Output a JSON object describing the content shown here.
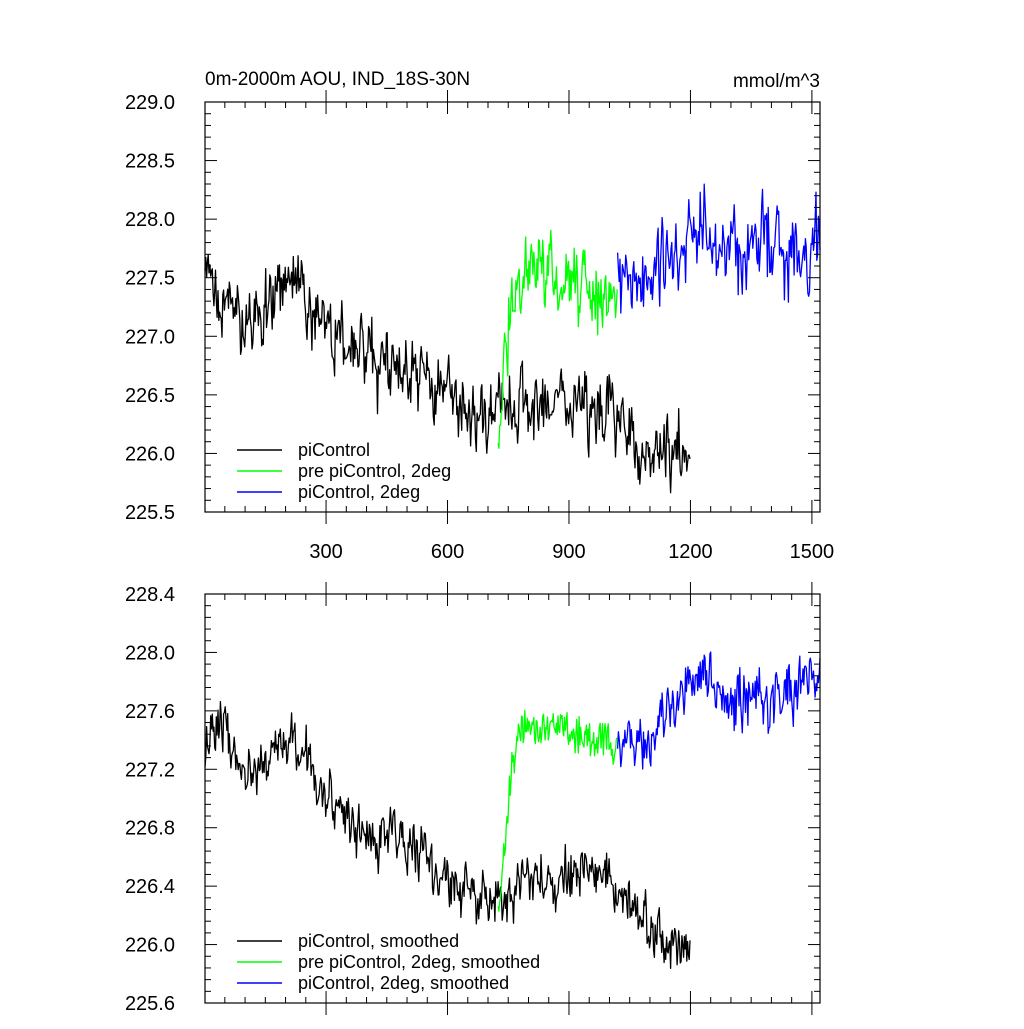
{
  "colors": {
    "piControl": "#000000",
    "pre_piControl_2deg": "#00ff00",
    "piControl_2deg": "#0000ff"
  },
  "chart_data": [
    {
      "type": "line",
      "title": "0m-2000m AOU, IND_18S-30N",
      "unit_label": "mmol/m^3",
      "xlabel": "",
      "ylabel": "",
      "xlim": [
        1,
        1520
      ],
      "ylim": [
        225.5,
        229.0
      ],
      "x_ticks": [
        300,
        600,
        900,
        1200,
        1500
      ],
      "y_ticks": [
        225.5,
        226.0,
        226.5,
        227.0,
        227.5,
        228.0,
        228.5,
        229.0
      ],
      "y_tick_labels": [
        "225.5",
        "226.0",
        "226.5",
        "227.0",
        "227.5",
        "228.0",
        "228.5",
        "229.0"
      ],
      "x_tick_labels": [
        "300",
        "600",
        "900",
        "1200",
        "1500"
      ],
      "grid": false,
      "legend_position": "bottom-left",
      "series": [
        {
          "name": "piControl",
          "color": "#000000",
          "x_start": 1,
          "x_end": 1200,
          "noise": 0.22,
          "anchors": [
            [
              1,
              227.45
            ],
            [
              100,
              227.1
            ],
            [
              200,
              227.5
            ],
            [
              300,
              227.1
            ],
            [
              400,
              226.8
            ],
            [
              500,
              226.7
            ],
            [
              600,
              226.5
            ],
            [
              700,
              226.25
            ],
            [
              730,
              226.3
            ],
            [
              800,
              226.45
            ],
            [
              900,
              226.45
            ],
            [
              1000,
              226.35
            ],
            [
              1100,
              226.05
            ],
            [
              1200,
              226.0
            ]
          ]
        },
        {
          "name": "pre piControl, 2deg",
          "color": "#00ff00",
          "x_start": 725,
          "x_end": 1020,
          "noise": 0.24,
          "anchors": [
            [
              725,
              226.2
            ],
            [
              745,
              226.8
            ],
            [
              760,
              227.4
            ],
            [
              800,
              227.6
            ],
            [
              900,
              227.45
            ],
            [
              1020,
              227.35
            ]
          ]
        },
        {
          "name": "piControl, 2deg",
          "color": "#0000ff",
          "x_start": 1020,
          "x_end": 1520,
          "noise": 0.27,
          "anchors": [
            [
              1020,
              227.4
            ],
            [
              1100,
              227.45
            ],
            [
              1200,
              227.85
            ],
            [
              1300,
              227.75
            ],
            [
              1400,
              227.75
            ],
            [
              1520,
              227.85
            ]
          ]
        }
      ]
    },
    {
      "type": "line",
      "title": "",
      "xlabel": "",
      "ylabel": "",
      "xlim": [
        1,
        1520
      ],
      "ylim": [
        225.6,
        228.4
      ],
      "x_ticks": [
        300,
        600,
        900,
        1200,
        1500
      ],
      "y_ticks": [
        225.6,
        226.0,
        226.4,
        226.8,
        227.2,
        227.6,
        228.0,
        228.4
      ],
      "y_tick_labels": [
        "225.6",
        "226.0",
        "226.4",
        "226.8",
        "227.2",
        "227.6",
        "228.0",
        "228.4"
      ],
      "grid": false,
      "legend_position": "bottom-left",
      "series": [
        {
          "name": "piControl, smoothed",
          "color": "#000000",
          "x_start": 1,
          "x_end": 1200,
          "noise": 0.13,
          "anchors": [
            [
              1,
              227.35
            ],
            [
              40,
              227.55
            ],
            [
              100,
              227.1
            ],
            [
              200,
              227.45
            ],
            [
              300,
              227.05
            ],
            [
              400,
              226.75
            ],
            [
              500,
              226.75
            ],
            [
              600,
              226.45
            ],
            [
              730,
              226.25
            ],
            [
              800,
              226.45
            ],
            [
              900,
              226.5
            ],
            [
              1000,
              226.45
            ],
            [
              1100,
              226.1
            ],
            [
              1200,
              225.95
            ]
          ]
        },
        {
          "name": "pre piControl, 2deg, smoothed",
          "color": "#00ff00",
          "x_start": 725,
          "x_end": 1020,
          "noise": 0.11,
          "anchors": [
            [
              725,
              226.2
            ],
            [
              745,
              226.8
            ],
            [
              760,
              227.35
            ],
            [
              800,
              227.5
            ],
            [
              900,
              227.45
            ],
            [
              1020,
              227.35
            ]
          ]
        },
        {
          "name": "piControl, 2deg, smoothed",
          "color": "#0000ff",
          "x_start": 1020,
          "x_end": 1520,
          "noise": 0.15,
          "anchors": [
            [
              1020,
              227.4
            ],
            [
              1100,
              227.45
            ],
            [
              1200,
              227.85
            ],
            [
              1300,
              227.7
            ],
            [
              1400,
              227.65
            ],
            [
              1520,
              227.8
            ]
          ]
        }
      ]
    }
  ]
}
